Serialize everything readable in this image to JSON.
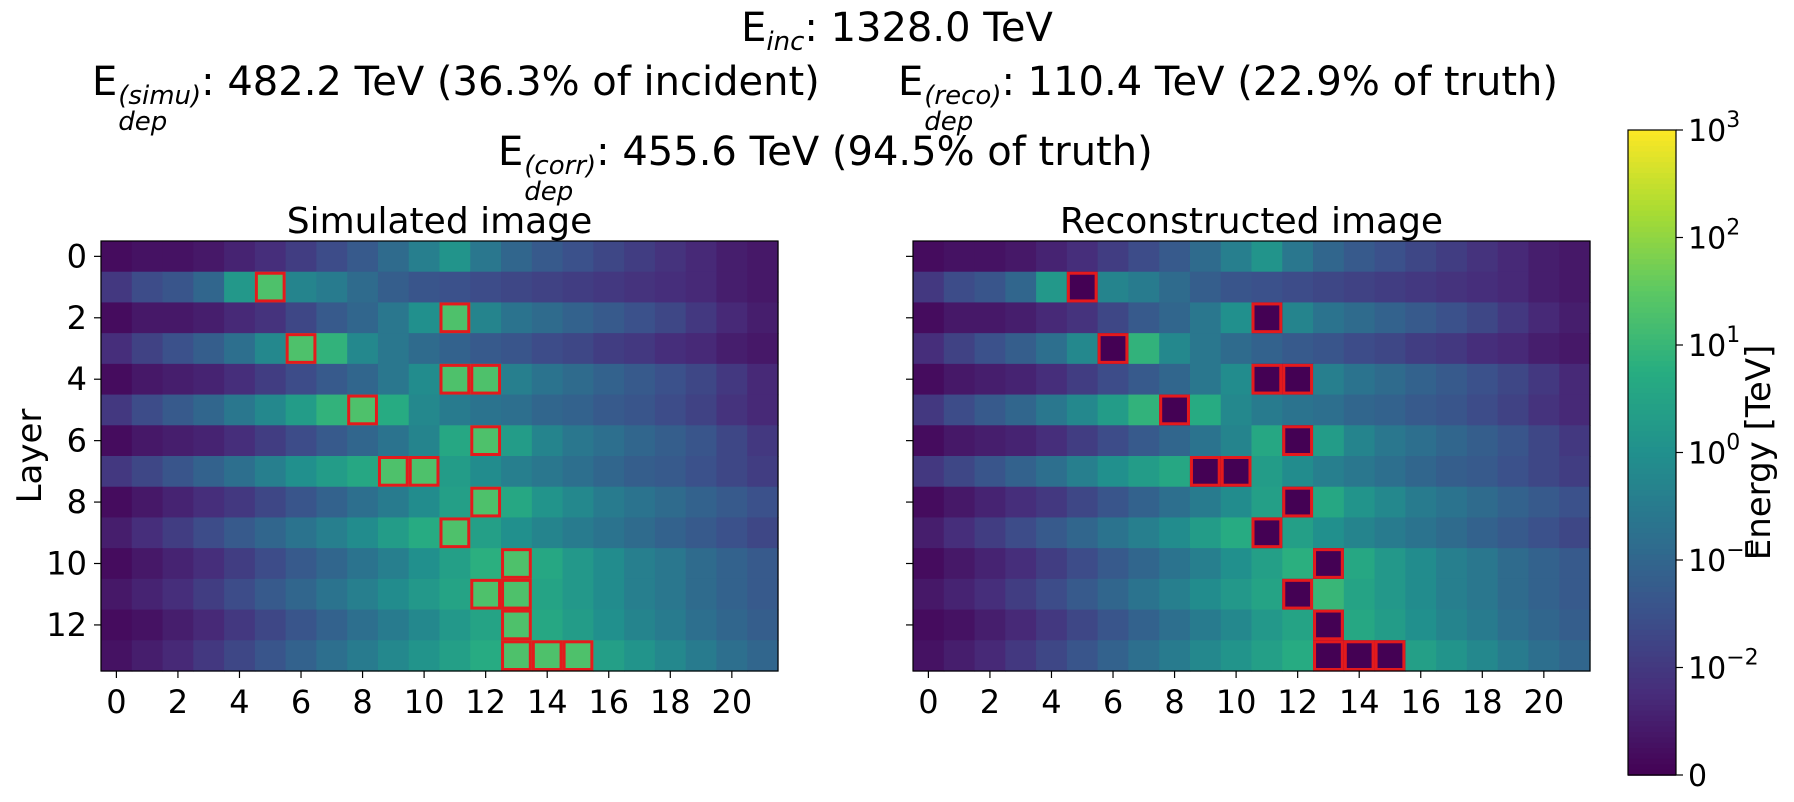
{
  "header": {
    "line1_prefix": "E",
    "line1_sub": "inc",
    "line1_text": ": 1328.0 TeV",
    "simu_prefix": "E",
    "simu_sup": "(simu)",
    "simu_sub": "dep",
    "simu_text": ": 482.2 TeV (36.3% of incident)",
    "reco_prefix": "E",
    "reco_sup": "(reco)",
    "reco_sub": "dep",
    "reco_text": ": 110.4 TeV (22.9% of truth)",
    "corr_prefix": "E",
    "corr_sup": "(corr)",
    "corr_sub": "dep",
    "corr_text": ": 455.6 TeV (94.5% of truth)"
  },
  "chart_data": [
    {
      "type": "heatmap",
      "title": "Simulated image",
      "ylabel": "Layer",
      "xlabel": "",
      "x_ticks": [
        "0",
        "2",
        "4",
        "6",
        "8",
        "10",
        "12",
        "14",
        "16",
        "18",
        "20"
      ],
      "y_ticks": [
        "0",
        "2",
        "4",
        "6",
        "8",
        "10",
        "12"
      ],
      "n_cols": 22,
      "n_rows": 14,
      "colorscale": "log",
      "values_log10": [
        [
          -2.8,
          -2.7,
          -2.7,
          -2.6,
          -2.4,
          -2.2,
          -1.9,
          -1.6,
          -1.3,
          -0.9,
          -0.4,
          0.1,
          -0.6,
          -1.0,
          -1.3,
          -1.5,
          -1.7,
          -1.9,
          -2.1,
          -2.3,
          -2.5,
          -2.6
        ],
        [
          -2.0,
          -1.6,
          -1.4,
          -1.0,
          0.2,
          1.3,
          -0.3,
          -0.5,
          -0.9,
          -1.2,
          -1.4,
          -1.5,
          -1.6,
          -1.7,
          -1.8,
          -1.9,
          -2.0,
          -2.1,
          -2.2,
          -2.3,
          -2.5,
          -2.6
        ],
        [
          -2.8,
          -2.6,
          -2.6,
          -2.5,
          -2.3,
          -2.1,
          -1.7,
          -1.3,
          -1.0,
          -0.6,
          0.0,
          1.3,
          -0.3,
          -0.7,
          -0.9,
          -1.1,
          -1.3,
          -1.5,
          -1.7,
          -2.0,
          -2.3,
          -2.5
        ],
        [
          -2.2,
          -1.8,
          -1.5,
          -1.2,
          -0.8,
          -0.2,
          1.3,
          0.9,
          -0.2,
          -0.6,
          -0.9,
          -1.1,
          -1.3,
          -1.4,
          -1.6,
          -1.7,
          -1.9,
          -2.0,
          -2.2,
          -2.3,
          -2.5,
          -2.6
        ],
        [
          -2.8,
          -2.6,
          -2.5,
          -2.4,
          -2.2,
          -1.9,
          -1.6,
          -1.3,
          -1.0,
          -0.6,
          -0.1,
          1.3,
          1.3,
          -0.4,
          -0.7,
          -0.9,
          -1.1,
          -1.3,
          -1.5,
          -1.7,
          -2.0,
          -2.3
        ],
        [
          -2.0,
          -1.6,
          -1.3,
          -1.0,
          -0.6,
          -0.2,
          0.3,
          0.9,
          1.3,
          0.7,
          -0.2,
          -0.5,
          -0.7,
          -0.8,
          -1.0,
          -1.1,
          -1.3,
          -1.4,
          -1.6,
          -1.8,
          -2.1,
          -2.3
        ],
        [
          -2.8,
          -2.6,
          -2.5,
          -2.4,
          -2.2,
          -1.9,
          -1.6,
          -1.3,
          -1.0,
          -0.7,
          -0.3,
          0.6,
          1.3,
          0.3,
          -0.3,
          -0.6,
          -0.8,
          -1.0,
          -1.2,
          -1.4,
          -1.7,
          -2.0
        ],
        [
          -2.0,
          -1.7,
          -1.4,
          -1.1,
          -0.8,
          -0.4,
          0.0,
          0.3,
          0.6,
          1.3,
          1.3,
          0.3,
          -0.1,
          -0.4,
          -0.6,
          -0.8,
          -1.0,
          -1.2,
          -1.3,
          -1.5,
          -1.7,
          -1.9
        ],
        [
          -2.8,
          -2.6,
          -2.4,
          -2.2,
          -2.0,
          -1.7,
          -1.4,
          -1.1,
          -0.8,
          -0.5,
          -0.1,
          0.4,
          1.3,
          0.6,
          0.1,
          -0.2,
          -0.5,
          -0.7,
          -0.9,
          -1.1,
          -1.3,
          -1.5
        ],
        [
          -2.5,
          -2.2,
          -1.9,
          -1.6,
          -1.3,
          -1.0,
          -0.7,
          -0.4,
          -0.1,
          0.3,
          0.7,
          1.3,
          0.4,
          0.0,
          -0.3,
          -0.5,
          -0.7,
          -0.9,
          -1.1,
          -1.3,
          -1.5,
          -1.7
        ],
        [
          -2.8,
          -2.6,
          -2.4,
          -2.2,
          -1.9,
          -1.6,
          -1.3,
          -1.0,
          -0.7,
          -0.4,
          0.0,
          0.4,
          0.8,
          1.3,
          0.6,
          0.2,
          -0.1,
          -0.4,
          -0.6,
          -0.9,
          -1.1,
          -1.3
        ],
        [
          -2.6,
          -2.4,
          -2.2,
          -1.9,
          -1.6,
          -1.3,
          -1.0,
          -0.7,
          -0.4,
          -0.1,
          0.2,
          0.5,
          1.3,
          1.3,
          0.5,
          0.2,
          -0.1,
          -0.4,
          -0.6,
          -0.9,
          -1.1,
          -1.3
        ],
        [
          -2.8,
          -2.7,
          -2.5,
          -2.3,
          -2.0,
          -1.7,
          -1.4,
          -1.1,
          -0.8,
          -0.5,
          -0.2,
          0.2,
          0.5,
          1.3,
          0.6,
          0.3,
          0.0,
          -0.3,
          -0.5,
          -0.8,
          -1.0,
          -1.2
        ],
        [
          -2.7,
          -2.5,
          -2.3,
          -2.0,
          -1.7,
          -1.4,
          -1.1,
          -0.8,
          -0.5,
          -0.2,
          0.1,
          0.4,
          0.7,
          1.3,
          1.3,
          1.3,
          0.4,
          0.1,
          -0.2,
          -0.5,
          -0.8,
          -1.0
        ]
      ],
      "highlighted_cells": [
        [
          1,
          5
        ],
        [
          2,
          11
        ],
        [
          3,
          6
        ],
        [
          4,
          11
        ],
        [
          4,
          12
        ],
        [
          5,
          8
        ],
        [
          6,
          12
        ],
        [
          7,
          9
        ],
        [
          7,
          10
        ],
        [
          8,
          12
        ],
        [
          9,
          11
        ],
        [
          10,
          13
        ],
        [
          11,
          12
        ],
        [
          11,
          13
        ],
        [
          12,
          13
        ],
        [
          13,
          13
        ],
        [
          13,
          14
        ],
        [
          13,
          15
        ]
      ],
      "highlight_color": "#e41a1c"
    },
    {
      "type": "heatmap",
      "title": "Reconstructed image",
      "ylabel": "",
      "xlabel": "",
      "x_ticks": [
        "0",
        "2",
        "4",
        "6",
        "8",
        "10",
        "12",
        "14",
        "16",
        "18",
        "20"
      ],
      "y_ticks": [
        "",
        "",
        "",
        "",
        "",
        "",
        ""
      ],
      "n_cols": 22,
      "n_rows": 14,
      "colorscale": "log",
      "values_log10": [
        [
          -2.8,
          -2.7,
          -2.7,
          -2.6,
          -2.4,
          -2.2,
          -1.9,
          -1.6,
          -1.3,
          -0.9,
          -0.4,
          0.1,
          -0.6,
          -1.0,
          -1.3,
          -1.5,
          -1.7,
          -1.9,
          -2.1,
          -2.3,
          -2.5,
          -2.6
        ],
        [
          -2.0,
          -1.6,
          -1.4,
          -1.0,
          0.2,
          -3.0,
          -0.3,
          -0.5,
          -0.9,
          -1.2,
          -1.4,
          -1.5,
          -1.6,
          -1.7,
          -1.8,
          -1.9,
          -2.0,
          -2.1,
          -2.2,
          -2.3,
          -2.5,
          -2.6
        ],
        [
          -2.8,
          -2.6,
          -2.6,
          -2.5,
          -2.3,
          -2.1,
          -1.7,
          -1.3,
          -1.0,
          -0.6,
          0.0,
          -3.0,
          -0.3,
          -0.7,
          -0.9,
          -1.1,
          -1.3,
          -1.5,
          -1.7,
          -2.0,
          -2.3,
          -2.5
        ],
        [
          -2.2,
          -1.8,
          -1.5,
          -1.2,
          -0.8,
          -0.2,
          -3.0,
          0.9,
          -0.2,
          -0.6,
          -0.9,
          -1.1,
          -1.3,
          -1.4,
          -1.6,
          -1.7,
          -1.9,
          -2.0,
          -2.2,
          -2.3,
          -2.5,
          -2.6
        ],
        [
          -2.8,
          -2.6,
          -2.5,
          -2.4,
          -2.2,
          -1.9,
          -1.6,
          -1.3,
          -1.0,
          -0.6,
          -0.1,
          -3.0,
          -3.0,
          -0.4,
          -0.7,
          -0.9,
          -1.1,
          -1.3,
          -1.5,
          -1.7,
          -2.0,
          -2.3
        ],
        [
          -2.0,
          -1.6,
          -1.3,
          -1.0,
          -0.6,
          -0.2,
          0.3,
          0.9,
          -3.0,
          0.7,
          -0.2,
          -0.5,
          -0.7,
          -0.8,
          -1.0,
          -1.1,
          -1.3,
          -1.4,
          -1.6,
          -1.8,
          -2.1,
          -2.3
        ],
        [
          -2.8,
          -2.6,
          -2.5,
          -2.4,
          -2.2,
          -1.9,
          -1.6,
          -1.3,
          -1.0,
          -0.7,
          -0.3,
          0.6,
          -3.0,
          0.3,
          -0.3,
          -0.6,
          -0.8,
          -1.0,
          -1.2,
          -1.4,
          -1.7,
          -2.0
        ],
        [
          -2.0,
          -1.7,
          -1.4,
          -1.1,
          -0.8,
          -0.4,
          0.0,
          0.3,
          0.6,
          -3.0,
          -3.0,
          0.3,
          -0.1,
          -0.4,
          -0.6,
          -0.8,
          -1.0,
          -1.2,
          -1.3,
          -1.5,
          -1.7,
          -1.9
        ],
        [
          -2.8,
          -2.6,
          -2.4,
          -2.2,
          -2.0,
          -1.7,
          -1.4,
          -1.1,
          -0.8,
          -0.5,
          -0.1,
          0.4,
          -3.0,
          0.6,
          0.1,
          -0.2,
          -0.5,
          -0.7,
          -0.9,
          -1.1,
          -1.3,
          -1.5
        ],
        [
          -2.5,
          -2.2,
          -1.9,
          -1.6,
          -1.3,
          -1.0,
          -0.7,
          -0.4,
          -0.1,
          0.3,
          0.7,
          -3.0,
          0.4,
          0.0,
          -0.3,
          -0.5,
          -0.7,
          -0.9,
          -1.1,
          -1.3,
          -1.5,
          -1.7
        ],
        [
          -2.8,
          -2.6,
          -2.4,
          -2.2,
          -1.9,
          -1.6,
          -1.3,
          -1.0,
          -0.7,
          -0.4,
          0.0,
          0.4,
          0.8,
          -3.0,
          0.6,
          0.2,
          -0.1,
          -0.4,
          -0.6,
          -0.9,
          -1.1,
          -1.3
        ],
        [
          -2.6,
          -2.4,
          -2.2,
          -1.9,
          -1.6,
          -1.3,
          -1.0,
          -0.7,
          -0.4,
          -0.1,
          0.2,
          0.5,
          -3.0,
          1.0,
          0.5,
          0.2,
          -0.1,
          -0.4,
          -0.6,
          -0.9,
          -1.1,
          -1.3
        ],
        [
          -2.8,
          -2.7,
          -2.5,
          -2.3,
          -2.0,
          -1.7,
          -1.4,
          -1.1,
          -0.8,
          -0.5,
          -0.2,
          0.2,
          0.5,
          -3.0,
          0.6,
          0.3,
          0.0,
          -0.3,
          -0.5,
          -0.8,
          -1.0,
          -1.2
        ],
        [
          -2.7,
          -2.5,
          -2.3,
          -2.0,
          -1.7,
          -1.4,
          -1.1,
          -0.8,
          -0.5,
          -0.2,
          0.1,
          0.4,
          0.7,
          -3.0,
          -3.0,
          -3.0,
          0.4,
          0.1,
          -0.2,
          -0.5,
          -0.8,
          -1.0
        ]
      ],
      "highlighted_cells": [
        [
          1,
          5
        ],
        [
          2,
          11
        ],
        [
          3,
          6
        ],
        [
          4,
          11
        ],
        [
          4,
          12
        ],
        [
          5,
          8
        ],
        [
          6,
          12
        ],
        [
          7,
          9
        ],
        [
          7,
          10
        ],
        [
          8,
          12
        ],
        [
          9,
          11
        ],
        [
          10,
          13
        ],
        [
          11,
          12
        ],
        [
          12,
          13
        ],
        [
          13,
          13
        ],
        [
          13,
          14
        ],
        [
          13,
          15
        ]
      ],
      "highlight_color": "#e41a1c"
    }
  ],
  "colorbar": {
    "label": "Energy [TeV]",
    "ticks": [
      {
        "base": "10",
        "exp": "3",
        "log10": 3
      },
      {
        "base": "10",
        "exp": "2",
        "log10": 2
      },
      {
        "base": "10",
        "exp": "1",
        "log10": 1
      },
      {
        "base": "10",
        "exp": "0",
        "log10": 0
      },
      {
        "base": "10",
        "exp": "−1",
        "log10": -1
      },
      {
        "base": "10",
        "exp": "−2",
        "log10": -2
      },
      {
        "base": "0",
        "exp": "",
        "log10": -3
      }
    ],
    "range_log10": [
      -3,
      3
    ],
    "colormap": "viridis"
  }
}
